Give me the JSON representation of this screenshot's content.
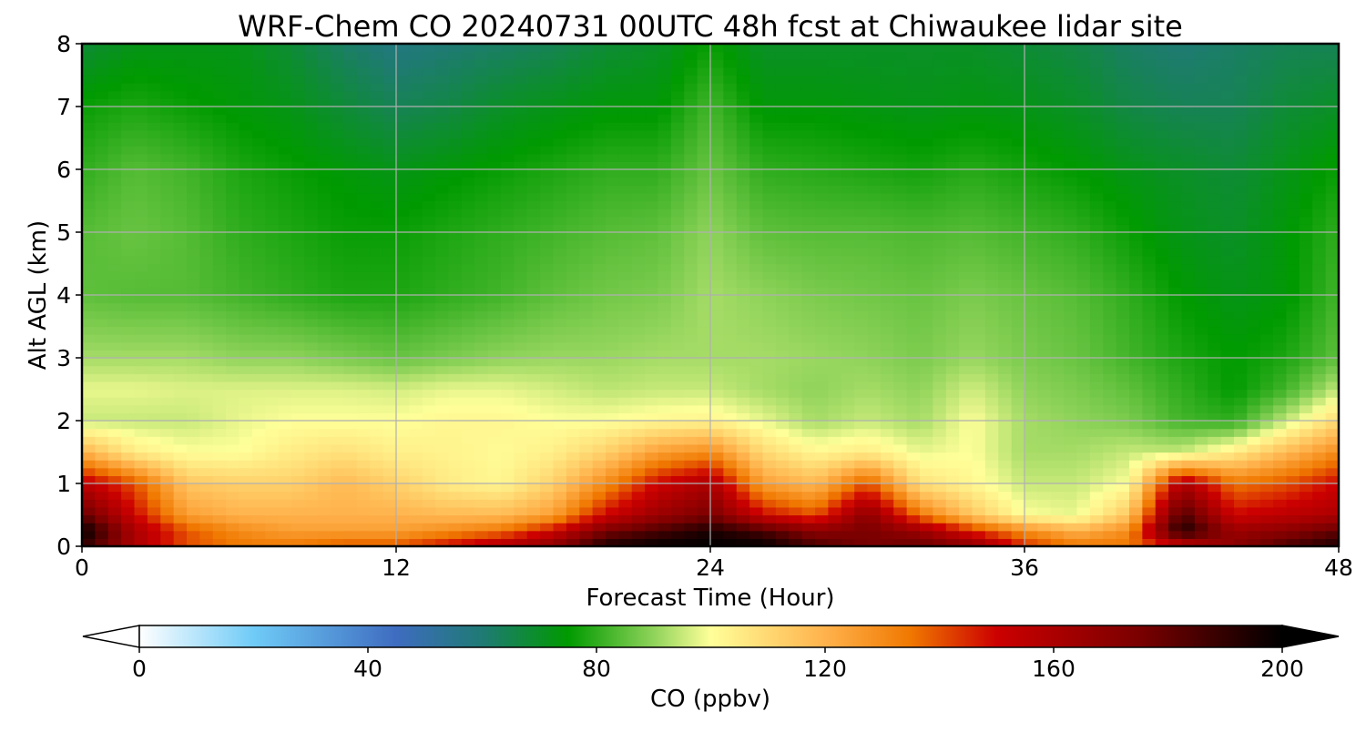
{
  "chart_data": {
    "type": "heatmap",
    "title": "WRF-Chem CO  20240731 00UTC 48h fcst at Chiwaukee lidar site",
    "xlabel": "Forecast Time (Hour)",
    "ylabel": "Alt AGL (km)",
    "xlim": [
      0,
      48
    ],
    "ylim": [
      0,
      8
    ],
    "xticks": [
      "0",
      "12",
      "24",
      "36",
      "48"
    ],
    "yticks": [
      "0",
      "1",
      "2",
      "3",
      "4",
      "5",
      "6",
      "7",
      "8"
    ],
    "grid": true,
    "colorbar": {
      "label": "CO  (ppbv)",
      "vmin": 0,
      "vmax": 200,
      "ticks": [
        "0",
        "40",
        "80",
        "120",
        "160",
        "200"
      ],
      "extend": "both",
      "stops": [
        {
          "value": 0,
          "color": "#ffffff"
        },
        {
          "value": 20,
          "color": "#6fcbf7"
        },
        {
          "value": 45,
          "color": "#3e6cc0"
        },
        {
          "value": 60,
          "color": "#1f7a74"
        },
        {
          "value": 75,
          "color": "#009a00"
        },
        {
          "value": 90,
          "color": "#8fd35a"
        },
        {
          "value": 100,
          "color": "#ffff99"
        },
        {
          "value": 120,
          "color": "#ffb24c"
        },
        {
          "value": 135,
          "color": "#f07800"
        },
        {
          "value": 150,
          "color": "#cc0000"
        },
        {
          "value": 175,
          "color": "#7a0000"
        },
        {
          "value": 200,
          "color": "#000000"
        }
      ]
    },
    "grid_x_hours": [
      0,
      2,
      4,
      6,
      8,
      10,
      12,
      14,
      16,
      18,
      20,
      22,
      24,
      26,
      28,
      30,
      32,
      34,
      36,
      38,
      40,
      42,
      44,
      46,
      48
    ],
    "grid_y_km": [
      0,
      0.25,
      0.5,
      1,
      1.5,
      2,
      2.5,
      3,
      4,
      5,
      6,
      7,
      8
    ],
    "values_ppbv": [
      [
        190,
        160,
        140,
        135,
        135,
        140,
        140,
        150,
        160,
        170,
        195,
        200,
        200,
        200,
        185,
        175,
        180,
        170,
        145,
        135,
        135,
        150,
        170,
        185,
        195
      ],
      [
        200,
        160,
        140,
        130,
        125,
        125,
        125,
        130,
        135,
        150,
        175,
        185,
        195,
        185,
        170,
        175,
        165,
        145,
        130,
        120,
        130,
        195,
        165,
        170,
        180
      ],
      [
        180,
        150,
        125,
        120,
        120,
        120,
        120,
        118,
        118,
        125,
        150,
        165,
        175,
        150,
        140,
        170,
        135,
        115,
        100,
        98,
        115,
        185,
        150,
        155,
        160
      ],
      [
        155,
        140,
        115,
        112,
        112,
        118,
        112,
        105,
        102,
        112,
        130,
        150,
        160,
        125,
        118,
        140,
        108,
        102,
        95,
        95,
        100,
        160,
        135,
        140,
        150
      ],
      [
        120,
        105,
        100,
        100,
        105,
        108,
        104,
        103,
        101,
        104,
        112,
        125,
        130,
        110,
        102,
        105,
        98,
        100,
        92,
        92,
        95,
        95,
        105,
        118,
        130
      ],
      [
        95,
        95,
        95,
        98,
        100,
        100,
        100,
        102,
        102,
        100,
        100,
        102,
        103,
        98,
        92,
        95,
        92,
        100,
        92,
        90,
        88,
        82,
        80,
        95,
        110
      ],
      [
        98,
        98,
        97,
        97,
        97,
        97,
        96,
        98,
        98,
        96,
        94,
        95,
        95,
        92,
        90,
        92,
        90,
        96,
        90,
        88,
        85,
        80,
        75,
        82,
        95
      ],
      [
        92,
        92,
        92,
        90,
        90,
        88,
        86,
        88,
        90,
        91,
        91,
        92,
        92,
        92,
        91,
        90,
        88,
        91,
        88,
        86,
        82,
        78,
        75,
        78,
        85
      ],
      [
        85,
        84,
        84,
        82,
        80,
        78,
        78,
        80,
        82,
        85,
        87,
        88,
        92,
        90,
        88,
        87,
        86,
        88,
        86,
        84,
        80,
        75,
        72,
        74,
        82
      ],
      [
        84,
        86,
        84,
        80,
        78,
        76,
        76,
        78,
        80,
        82,
        84,
        85,
        90,
        85,
        84,
        84,
        83,
        84,
        82,
        80,
        76,
        72,
        70,
        74,
        80
      ],
      [
        80,
        84,
        82,
        78,
        76,
        74,
        72,
        74,
        76,
        78,
        80,
        80,
        86,
        80,
        79,
        78,
        77,
        79,
        77,
        75,
        72,
        70,
        68,
        72,
        76
      ],
      [
        76,
        78,
        76,
        74,
        72,
        68,
        64,
        66,
        70,
        72,
        74,
        74,
        82,
        74,
        74,
        73,
        72,
        73,
        72,
        70,
        66,
        64,
        64,
        68,
        70
      ],
      [
        68,
        72,
        72,
        72,
        68,
        62,
        58,
        60,
        62,
        64,
        68,
        70,
        76,
        70,
        70,
        70,
        70,
        70,
        68,
        66,
        62,
        60,
        62,
        64,
        64
      ]
    ]
  }
}
